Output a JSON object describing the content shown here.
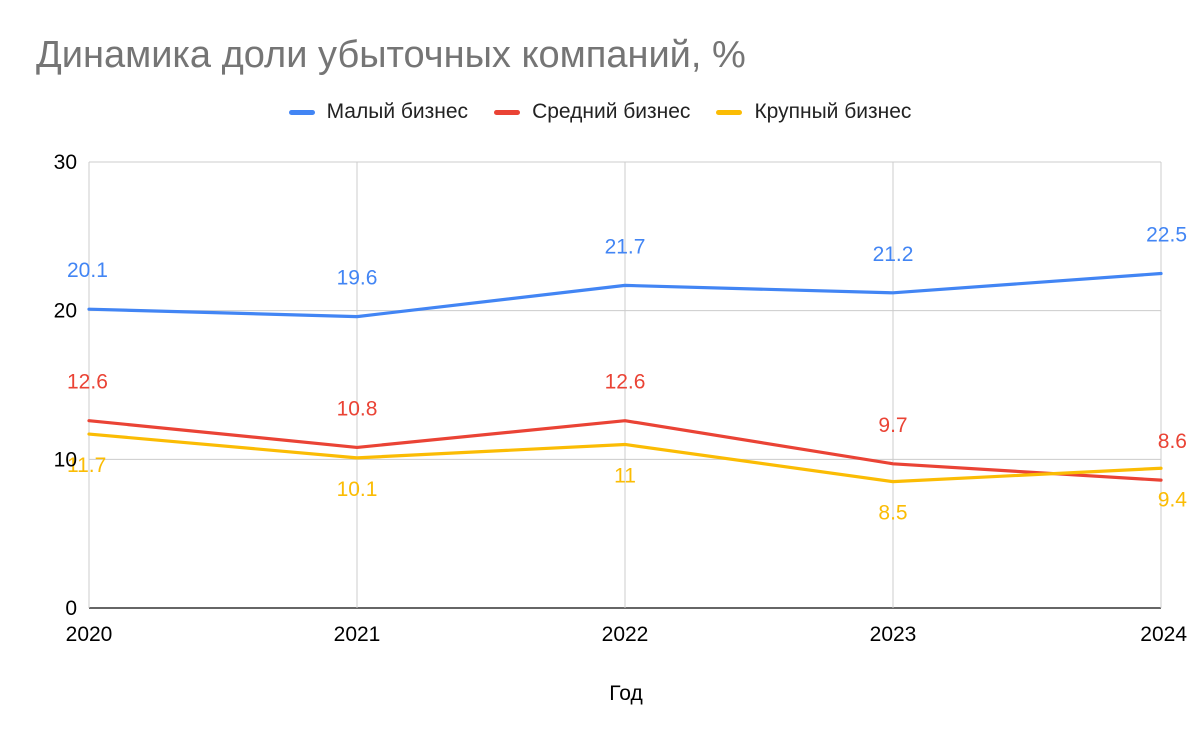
{
  "chart_data": {
    "type": "line",
    "title": "Динамика доли убыточных компаний, %",
    "xlabel": "Год",
    "ylabel": "",
    "categories": [
      "2020",
      "2021",
      "2022",
      "2023",
      "2024"
    ],
    "ylim": [
      0,
      30
    ],
    "yticks": [
      0,
      10,
      20,
      30
    ],
    "grid": true,
    "legend_position": "top-center",
    "series": [
      {
        "name": "Малый бизнес",
        "color": "#4285F4",
        "values": [
          20.1,
          19.6,
          21.7,
          21.2,
          22.5
        ],
        "labels": [
          "20.1",
          "19.6",
          "21.7",
          "21.2",
          "22.5"
        ],
        "label_position": "above"
      },
      {
        "name": "Средний бизнес",
        "color": "#EA4335",
        "values": [
          12.6,
          10.8,
          12.6,
          9.7,
          8.6
        ],
        "labels": [
          "12.6",
          "10.8",
          "12.6",
          "9.7",
          "8.6"
        ],
        "label_position": "above"
      },
      {
        "name": "Крупный бизнес",
        "color": "#FBBC04",
        "values": [
          11.7,
          10.1,
          11,
          8.5,
          9.4
        ],
        "labels": [
          "11.7",
          "10.1",
          "11",
          "8.5",
          "9.4"
        ],
        "label_position": "below"
      }
    ]
  }
}
